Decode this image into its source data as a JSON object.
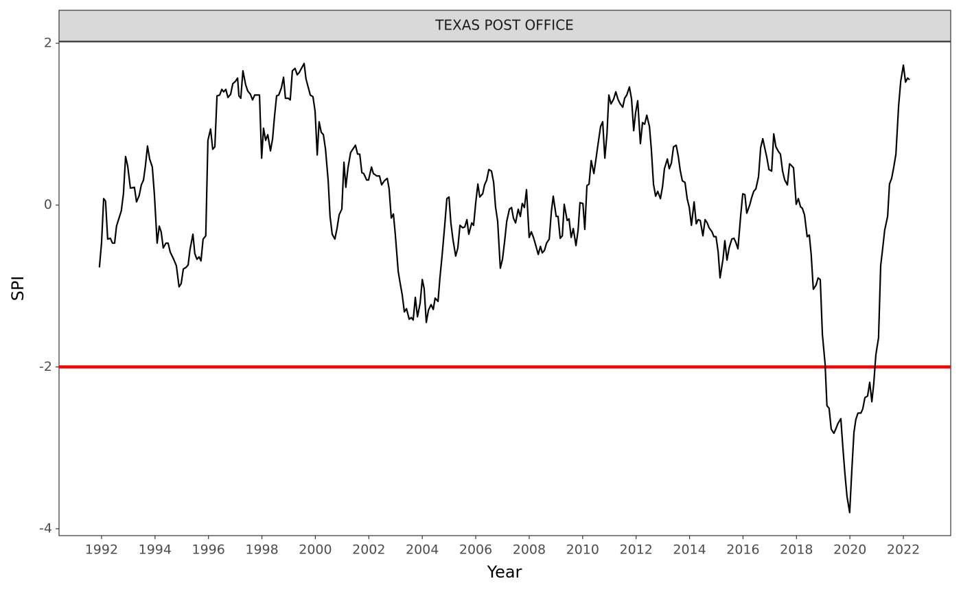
{
  "chart_data": {
    "type": "line",
    "facet_label": "TEXAS POST OFFICE",
    "xlabel": "Year",
    "ylabel": "SPI",
    "color": "#000000",
    "hline": {
      "value": -2,
      "color": "#ff0000"
    },
    "xlim": [
      1990.41,
      2023.77
    ],
    "ylim": [
      -4.085,
      2.017
    ],
    "xticks": [
      1992,
      1994,
      1996,
      1998,
      2000,
      2002,
      2004,
      2006,
      2008,
      2010,
      2012,
      2014,
      2016,
      2018,
      2020,
      2022
    ],
    "yticks": [
      -4,
      -2,
      0,
      2
    ],
    "x": [
      1991.92,
      1992.0,
      1992.08,
      1992.15,
      1992.23,
      1992.33,
      1992.41,
      1992.49,
      1992.56,
      1992.74,
      1992.82,
      1992.9,
      1992.98,
      1993.08,
      1993.23,
      1993.31,
      1993.41,
      1993.49,
      1993.57,
      1993.64,
      1993.72,
      1993.8,
      1993.9,
      1993.98,
      1994.08,
      1994.16,
      1994.23,
      1994.31,
      1994.41,
      1994.49,
      1994.57,
      1994.7,
      1994.8,
      1994.9,
      1994.98,
      1995.06,
      1995.16,
      1995.24,
      1995.31,
      1995.42,
      1995.49,
      1995.57,
      1995.65,
      1995.72,
      1995.8,
      1995.9,
      1995.98,
      1996.08,
      1996.16,
      1996.24,
      1996.32,
      1996.42,
      1996.5,
      1996.57,
      1996.65,
      1996.73,
      1996.83,
      1996.91,
      1997.01,
      1997.09,
      1997.14,
      1997.21,
      1997.29,
      1997.39,
      1997.47,
      1997.57,
      1997.65,
      1997.73,
      1997.83,
      1997.91,
      1997.99,
      1998.06,
      1998.14,
      1998.22,
      1998.32,
      1998.4,
      1998.47,
      1998.55,
      1998.63,
      1998.73,
      1998.81,
      1998.88,
      1998.99,
      1999.06,
      1999.14,
      1999.24,
      1999.32,
      1999.4,
      1999.48,
      1999.58,
      1999.65,
      1999.73,
      1999.81,
      1999.91,
      1999.99,
      2000.07,
      2000.14,
      2000.22,
      2000.3,
      2000.38,
      2000.48,
      2000.55,
      2000.63,
      2000.73,
      2000.81,
      2000.89,
      2000.99,
      2001.07,
      2001.14,
      2001.22,
      2001.32,
      2001.4,
      2001.5,
      2001.58,
      2001.66,
      2001.74,
      2001.81,
      2001.92,
      2001.99,
      2002.1,
      2002.17,
      2002.3,
      2002.4,
      2002.48,
      2002.58,
      2002.69,
      2002.76,
      2002.84,
      2002.92,
      2002.99,
      2003.1,
      2003.17,
      2003.25,
      2003.33,
      2003.41,
      2003.51,
      2003.59,
      2003.66,
      2003.74,
      2003.82,
      2003.92,
      2004.0,
      2004.07,
      2004.15,
      2004.23,
      2004.33,
      2004.41,
      2004.48,
      2004.59,
      2004.66,
      2004.74,
      2004.84,
      2004.92,
      2005.0,
      2005.07,
      2005.15,
      2005.25,
      2005.33,
      2005.41,
      2005.51,
      2005.59,
      2005.67,
      2005.74,
      2005.85,
      2005.92,
      2006.0,
      2006.08,
      2006.15,
      2006.26,
      2006.33,
      2006.41,
      2006.49,
      2006.59,
      2006.67,
      2006.74,
      2006.82,
      2006.92,
      2007.0,
      2007.08,
      2007.16,
      2007.26,
      2007.34,
      2007.41,
      2007.49,
      2007.59,
      2007.67,
      2007.74,
      2007.82,
      2007.9,
      2008.0,
      2008.08,
      2008.16,
      2008.23,
      2008.34,
      2008.42,
      2008.49,
      2008.57,
      2008.65,
      2008.75,
      2008.83,
      2008.9,
      2009.01,
      2009.08,
      2009.16,
      2009.24,
      2009.31,
      2009.42,
      2009.49,
      2009.57,
      2009.65,
      2009.75,
      2009.83,
      2009.9,
      2010.01,
      2010.08,
      2010.16,
      2010.24,
      2010.32,
      2010.42,
      2010.49,
      2010.57,
      2010.67,
      2010.75,
      2010.83,
      2010.91,
      2010.98,
      2011.06,
      2011.16,
      2011.24,
      2011.32,
      2011.39,
      2011.5,
      2011.57,
      2011.65,
      2011.75,
      2011.83,
      2011.91,
      2011.98,
      2012.06,
      2012.16,
      2012.24,
      2012.32,
      2012.4,
      2012.5,
      2012.57,
      2012.65,
      2012.73,
      2012.81,
      2012.91,
      2012.99,
      2013.06,
      2013.17,
      2013.24,
      2013.32,
      2013.4,
      2013.5,
      2013.58,
      2013.65,
      2013.73,
      2013.83,
      2013.91,
      2013.99,
      2014.07,
      2014.17,
      2014.25,
      2014.32,
      2014.4,
      2014.5,
      2014.58,
      2014.66,
      2014.73,
      2014.84,
      2014.91,
      2014.99,
      2015.07,
      2015.14,
      2015.25,
      2015.32,
      2015.4,
      2015.48,
      2015.58,
      2015.66,
      2015.73,
      2015.81,
      2015.91,
      2015.99,
      2016.07,
      2016.14,
      2016.25,
      2016.32,
      2016.4,
      2016.48,
      2016.58,
      2016.66,
      2016.74,
      2016.81,
      2016.89,
      2016.97,
      2017.07,
      2017.15,
      2017.23,
      2017.33,
      2017.4,
      2017.48,
      2017.56,
      2017.66,
      2017.74,
      2017.81,
      2017.89,
      2017.99,
      2018.07,
      2018.15,
      2018.22,
      2018.3,
      2018.4,
      2018.48,
      2018.55,
      2018.63,
      2018.73,
      2018.81,
      2018.89,
      2018.97,
      2019.07,
      2019.14,
      2019.22,
      2019.3,
      2019.4,
      2019.48,
      2019.55,
      2019.66,
      2019.73,
      2019.81,
      2019.89,
      2019.99,
      2020.07,
      2020.15,
      2020.22,
      2020.3,
      2020.41,
      2020.48,
      2020.56,
      2020.66,
      2020.74,
      2020.82,
      2020.89,
      2020.97,
      2021.07,
      2021.15,
      2021.23,
      2021.3,
      2021.41,
      2021.48,
      2021.56,
      2021.64,
      2021.72,
      2021.82,
      2021.9,
      2022.0,
      2022.08,
      2022.16,
      2022.23
    ],
    "values": [
      -0.77,
      -0.47,
      0.08,
      0.05,
      -0.42,
      -0.41,
      -0.47,
      -0.47,
      -0.26,
      -0.07,
      0.14,
      0.6,
      0.48,
      0.21,
      0.22,
      0.04,
      0.12,
      0.25,
      0.31,
      0.48,
      0.73,
      0.57,
      0.47,
      0.12,
      -0.47,
      -0.26,
      -0.33,
      -0.53,
      -0.47,
      -0.47,
      -0.58,
      -0.67,
      -0.75,
      -1.01,
      -0.97,
      -0.79,
      -0.77,
      -0.74,
      -0.55,
      -0.36,
      -0.6,
      -0.67,
      -0.64,
      -0.69,
      -0.42,
      -0.38,
      0.8,
      0.94,
      0.69,
      0.72,
      1.35,
      1.36,
      1.43,
      1.4,
      1.43,
      1.33,
      1.37,
      1.5,
      1.53,
      1.57,
      1.35,
      1.32,
      1.66,
      1.49,
      1.41,
      1.37,
      1.3,
      1.36,
      1.36,
      1.36,
      0.58,
      0.95,
      0.8,
      0.87,
      0.67,
      0.82,
      1.09,
      1.35,
      1.36,
      1.45,
      1.58,
      1.32,
      1.32,
      1.3,
      1.66,
      1.69,
      1.61,
      1.64,
      1.69,
      1.75,
      1.56,
      1.46,
      1.36,
      1.34,
      1.16,
      0.62,
      1.03,
      0.9,
      0.87,
      0.69,
      0.3,
      -0.14,
      -0.36,
      -0.42,
      -0.29,
      -0.12,
      -0.05,
      0.53,
      0.22,
      0.46,
      0.65,
      0.69,
      0.74,
      0.63,
      0.63,
      0.4,
      0.39,
      0.31,
      0.31,
      0.47,
      0.39,
      0.36,
      0.36,
      0.25,
      0.3,
      0.33,
      0.2,
      -0.16,
      -0.11,
      -0.36,
      -0.82,
      -0.96,
      -1.11,
      -1.32,
      -1.28,
      -1.41,
      -1.39,
      -1.42,
      -1.14,
      -1.38,
      -1.21,
      -0.92,
      -1.03,
      -1.45,
      -1.3,
      -1.23,
      -1.29,
      -1.15,
      -1.19,
      -0.9,
      -0.63,
      -0.25,
      0.08,
      0.1,
      -0.22,
      -0.43,
      -0.63,
      -0.53,
      -0.25,
      -0.28,
      -0.27,
      -0.18,
      -0.36,
      -0.22,
      -0.25,
      0.03,
      0.26,
      0.1,
      0.14,
      0.25,
      0.31,
      0.44,
      0.42,
      0.28,
      -0.02,
      -0.2,
      -0.78,
      -0.67,
      -0.45,
      -0.2,
      -0.05,
      -0.03,
      -0.16,
      -0.22,
      -0.05,
      -0.14,
      0.02,
      -0.03,
      0.19,
      -0.4,
      -0.33,
      -0.4,
      -0.48,
      -0.61,
      -0.51,
      -0.59,
      -0.56,
      -0.47,
      -0.42,
      -0.08,
      0.11,
      -0.14,
      -0.14,
      -0.41,
      -0.38,
      0.01,
      -0.19,
      -0.17,
      -0.4,
      -0.29,
      -0.5,
      -0.31,
      0.03,
      0.02,
      -0.3,
      0.24,
      0.26,
      0.55,
      0.39,
      0.55,
      0.74,
      0.97,
      1.03,
      0.58,
      0.88,
      1.36,
      1.25,
      1.31,
      1.4,
      1.31,
      1.26,
      1.21,
      1.32,
      1.36,
      1.46,
      1.31,
      0.92,
      1.14,
      1.29,
      0.76,
      1.02,
      1.0,
      1.11,
      0.97,
      0.69,
      0.26,
      0.11,
      0.17,
      0.08,
      0.23,
      0.45,
      0.57,
      0.45,
      0.52,
      0.72,
      0.74,
      0.6,
      0.43,
      0.3,
      0.28,
      0.08,
      -0.03,
      -0.25,
      0.04,
      -0.23,
      -0.18,
      -0.19,
      -0.38,
      -0.18,
      -0.22,
      -0.28,
      -0.33,
      -0.39,
      -0.39,
      -0.58,
      -0.9,
      -0.67,
      -0.44,
      -0.68,
      -0.53,
      -0.42,
      -0.41,
      -0.46,
      -0.54,
      -0.14,
      0.14,
      0.13,
      -0.1,
      0.0,
      0.09,
      0.17,
      0.2,
      0.35,
      0.71,
      0.82,
      0.71,
      0.59,
      0.44,
      0.42,
      0.88,
      0.72,
      0.66,
      0.63,
      0.42,
      0.31,
      0.25,
      0.51,
      0.49,
      0.46,
      0.01,
      0.08,
      -0.02,
      -0.04,
      -0.12,
      -0.39,
      -0.37,
      -0.61,
      -1.04,
      -0.99,
      -0.9,
      -0.92,
      -1.6,
      -1.96,
      -2.48,
      -2.51,
      -2.77,
      -2.82,
      -2.76,
      -2.7,
      -2.64,
      -2.97,
      -3.31,
      -3.6,
      -3.8,
      -3.28,
      -2.81,
      -2.65,
      -2.57,
      -2.57,
      -2.52,
      -2.38,
      -2.36,
      -2.19,
      -2.43,
      -2.21,
      -1.85,
      -1.64,
      -0.75,
      -0.52,
      -0.31,
      -0.14,
      0.26,
      0.33,
      0.47,
      0.63,
      1.22,
      1.53,
      1.73,
      1.52,
      1.57,
      1.55
    ]
  }
}
